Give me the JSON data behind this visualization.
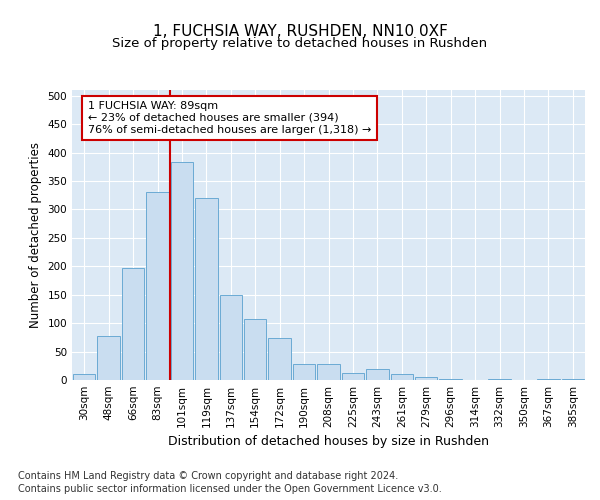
{
  "title": "1, FUCHSIA WAY, RUSHDEN, NN10 0XF",
  "subtitle": "Size of property relative to detached houses in Rushden",
  "xlabel": "Distribution of detached houses by size in Rushden",
  "ylabel": "Number of detached properties",
  "categories": [
    "30sqm",
    "48sqm",
    "66sqm",
    "83sqm",
    "101sqm",
    "119sqm",
    "137sqm",
    "154sqm",
    "172sqm",
    "190sqm",
    "208sqm",
    "225sqm",
    "243sqm",
    "261sqm",
    "279sqm",
    "296sqm",
    "314sqm",
    "332sqm",
    "350sqm",
    "367sqm",
    "385sqm"
  ],
  "values": [
    10,
    78,
    197,
    330,
    383,
    320,
    150,
    107,
    73,
    28,
    28,
    13,
    20,
    10,
    5,
    2,
    0,
    2,
    0,
    2,
    2
  ],
  "bar_color": "#c9ddf0",
  "bar_edge_color": "#6aaad4",
  "vline_color": "#cc0000",
  "vline_x_index": 3.5,
  "annotation_text": "1 FUCHSIA WAY: 89sqm\n← 23% of detached houses are smaller (394)\n76% of semi-detached houses are larger (1,318) →",
  "annotation_box_facecolor": "#ffffff",
  "annotation_box_edgecolor": "#cc0000",
  "ylim": [
    0,
    510
  ],
  "yticks": [
    0,
    50,
    100,
    150,
    200,
    250,
    300,
    350,
    400,
    450,
    500
  ],
  "plot_bg_color": "#dce9f5",
  "grid_color": "#ffffff",
  "footer_line1": "Contains HM Land Registry data © Crown copyright and database right 2024.",
  "footer_line2": "Contains public sector information licensed under the Open Government Licence v3.0.",
  "title_fontsize": 11,
  "subtitle_fontsize": 9.5,
  "tick_fontsize": 7.5,
  "ylabel_fontsize": 8.5,
  "xlabel_fontsize": 9,
  "annotation_fontsize": 8,
  "footer_fontsize": 7
}
